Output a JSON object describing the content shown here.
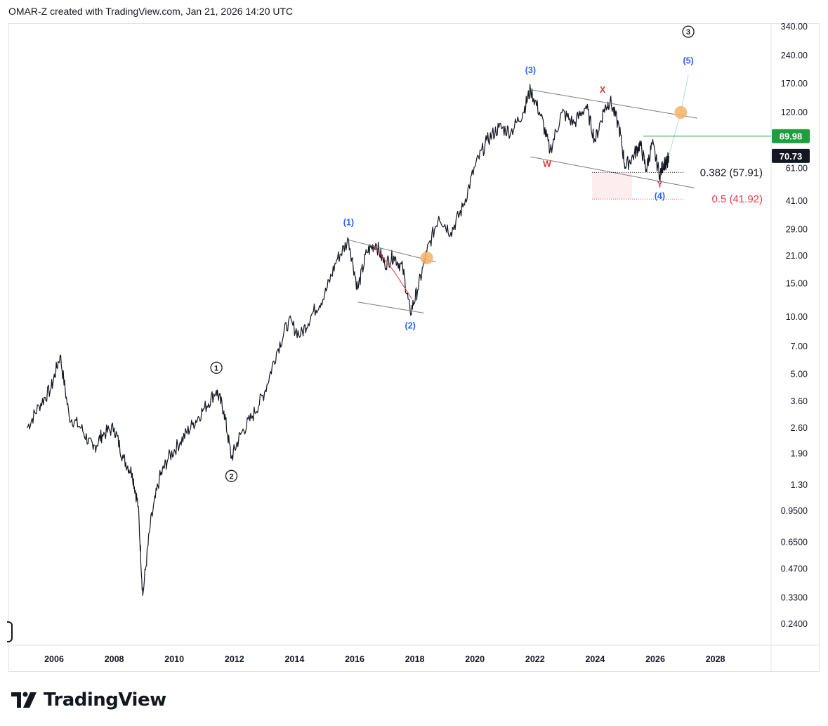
{
  "header": {
    "text": "OMAR-Z created with TradingView.com, Jan 21, 2026 14:20 UTC"
  },
  "footer": {
    "brand": "TradingView"
  },
  "colors": {
    "price": "#131722",
    "blue_wave": "#2962ff",
    "red_wave": "#e53935",
    "channel": "#787b86",
    "target_circle": "#f7b267",
    "green_level": "#1e9e3e",
    "fib_red": "#f23645",
    "fib_zone": "#fce8ea"
  },
  "chart_data": {
    "type": "line",
    "scale": "log",
    "ylim": [
      0.2,
      370
    ],
    "x_tick_labels": [
      "2006",
      "2008",
      "2010",
      "2012",
      "2014",
      "2016",
      "2018",
      "2020",
      "2022",
      "2024",
      "2026",
      "2028"
    ],
    "x_tick_years": [
      2006,
      2008,
      2010,
      2012,
      2014,
      2016,
      2018,
      2020,
      2022,
      2024,
      2026,
      2028
    ],
    "y_tick_labels": [
      "340.00",
      "240.00",
      "170.00",
      "120.00",
      "89.98",
      "70.73",
      "61.00",
      "41.00",
      "29.00",
      "21.00",
      "15.00",
      "10.00",
      "7.00",
      "5.00",
      "3.60",
      "2.60",
      "1.90",
      "1.30",
      "0.9500",
      "0.6500",
      "0.4700",
      "0.3300",
      "0.2400"
    ],
    "y_ticks": [
      340,
      240,
      170,
      120,
      61,
      41,
      29,
      21,
      15,
      10,
      7,
      5,
      3.6,
      2.6,
      1.9,
      1.3,
      0.95,
      0.65,
      0.47,
      0.33,
      0.24
    ],
    "price_badges": [
      {
        "label": "89.98",
        "value": 89.98,
        "color": "#1e9e3e"
      },
      {
        "label": "70.73",
        "value": 70.73,
        "color": "#131722"
      }
    ],
    "series": [
      {
        "name": "Price",
        "points": [
          [
            2005.1,
            2.6
          ],
          [
            2005.5,
            3.4
          ],
          [
            2005.9,
            4.2
          ],
          [
            2006.2,
            6.3
          ],
          [
            2006.5,
            3.0
          ],
          [
            2006.9,
            2.6
          ],
          [
            2007.3,
            2.0
          ],
          [
            2007.6,
            2.4
          ],
          [
            2008.0,
            2.6
          ],
          [
            2008.3,
            1.8
          ],
          [
            2008.6,
            1.5
          ],
          [
            2008.8,
            1.0
          ],
          [
            2008.95,
            0.34
          ],
          [
            2009.2,
            0.8
          ],
          [
            2009.5,
            1.4
          ],
          [
            2009.8,
            1.8
          ],
          [
            2010.2,
            2.2
          ],
          [
            2010.6,
            2.7
          ],
          [
            2011.0,
            3.3
          ],
          [
            2011.4,
            4.1
          ],
          [
            2011.65,
            3.2
          ],
          [
            2011.9,
            1.8
          ],
          [
            2012.2,
            2.4
          ],
          [
            2012.6,
            3.0
          ],
          [
            2013.0,
            4.0
          ],
          [
            2013.4,
            6.5
          ],
          [
            2013.8,
            9.5
          ],
          [
            2014.2,
            8.0
          ],
          [
            2014.6,
            10.5
          ],
          [
            2015.0,
            13.0
          ],
          [
            2015.4,
            20.0
          ],
          [
            2015.8,
            25.5
          ],
          [
            2016.1,
            14.0
          ],
          [
            2016.4,
            22.0
          ],
          [
            2016.7,
            24.5
          ],
          [
            2017.0,
            19.0
          ],
          [
            2017.3,
            21.0
          ],
          [
            2017.6,
            18.0
          ],
          [
            2017.85,
            10.5
          ],
          [
            2018.1,
            14.0
          ],
          [
            2018.4,
            22.0
          ],
          [
            2018.8,
            34.0
          ],
          [
            2019.2,
            28.0
          ],
          [
            2019.6,
            38.0
          ],
          [
            2020.0,
            62.0
          ],
          [
            2020.4,
            85.0
          ],
          [
            2020.8,
            100.0
          ],
          [
            2021.2,
            95.0
          ],
          [
            2021.6,
            120.0
          ],
          [
            2021.85,
            158.0
          ],
          [
            2022.2,
            115.0
          ],
          [
            2022.5,
            75.0
          ],
          [
            2022.9,
            120.0
          ],
          [
            2023.3,
            105.0
          ],
          [
            2023.7,
            130.0
          ],
          [
            2024.0,
            85.0
          ],
          [
            2024.3,
            125.0
          ],
          [
            2024.5,
            138.0
          ],
          [
            2024.8,
            100.0
          ],
          [
            2025.0,
            62.0
          ],
          [
            2025.3,
            72.0
          ],
          [
            2025.5,
            82.0
          ],
          [
            2025.7,
            60.0
          ],
          [
            2025.9,
            82.0
          ],
          [
            2026.15,
            56.0
          ],
          [
            2026.3,
            66.0
          ],
          [
            2026.35,
            62.0
          ],
          [
            2026.45,
            70.73
          ]
        ]
      }
    ],
    "projection": {
      "name": "Wave (5) projection",
      "points": [
        [
          2026.45,
          70.73
        ],
        [
          2026.85,
          120.0
        ],
        [
          2027.1,
          190.0
        ]
      ]
    },
    "channels": [
      {
        "name": "Wave (2) channel upper",
        "points": [
          [
            2015.8,
            25.5
          ],
          [
            2018.7,
            19.5
          ]
        ]
      },
      {
        "name": "Wave (2) channel lower",
        "points": [
          [
            2016.1,
            12.0
          ],
          [
            2018.3,
            10.5
          ]
        ]
      },
      {
        "name": "Wave (4) channel upper",
        "points": [
          [
            2021.85,
            158.0
          ],
          [
            2027.4,
            112.0
          ]
        ]
      },
      {
        "name": "Wave (4) channel lower",
        "points": [
          [
            2021.85,
            70.0
          ],
          [
            2027.3,
            48.0
          ]
        ]
      }
    ],
    "triangle": {
      "name": "Contracting triangle",
      "points": [
        [
          2016.6,
          24.0
        ],
        [
          2017.3,
          17.5
        ],
        [
          2017.9,
          12.5
        ]
      ]
    },
    "target_circles": [
      {
        "year": 2018.4,
        "value": 20.5
      },
      {
        "year": 2026.85,
        "value": 120.0
      }
    ],
    "green_level": {
      "value": 89.98,
      "start_year": 2025.6
    },
    "fibonacci": [
      {
        "label": "0.382 (57.91)",
        "value": 57.91,
        "color": "#131722"
      },
      {
        "label": "0.5 (41.92)",
        "value": 41.92,
        "color": "#f23645"
      }
    ],
    "wave_labels": [
      {
        "label": "(1)",
        "year": 2015.8,
        "value": 31.5,
        "color": "#2962ff",
        "circled": false
      },
      {
        "label": "(2)",
        "year": 2017.85,
        "value": 9.0,
        "color": "#2962ff",
        "circled": false
      },
      {
        "label": "(3)",
        "year": 2021.85,
        "value": 200.0,
        "color": "#2962ff",
        "circled": false
      },
      {
        "label": "(4)",
        "year": 2026.15,
        "value": 43.5,
        "color": "#2962ff",
        "circled": false
      },
      {
        "label": "(5)",
        "year": 2027.1,
        "value": 225.0,
        "color": "#2962ff",
        "circled": false
      },
      {
        "label": "W",
        "year": 2022.4,
        "value": 64.0,
        "color": "#e53935",
        "circled": false
      },
      {
        "label": "X",
        "year": 2024.25,
        "value": 158.0,
        "color": "#e53935",
        "circled": false
      },
      {
        "label": "Y",
        "year": 2026.15,
        "value": 50.0,
        "color": "#e53935",
        "circled": false
      },
      {
        "label": "1",
        "year": 2011.4,
        "value": 5.4,
        "color": "#131722",
        "circled": true
      },
      {
        "label": "2",
        "year": 2011.9,
        "value": 1.45,
        "color": "#131722",
        "circled": true
      },
      {
        "label": "3",
        "year": 2027.1,
        "value": 320.0,
        "color": "#131722",
        "circled": true
      }
    ]
  }
}
